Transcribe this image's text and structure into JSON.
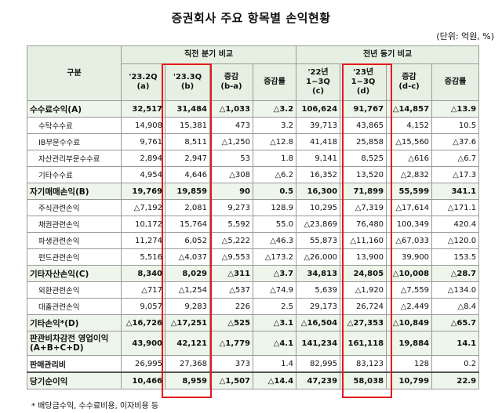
{
  "title": "증권회사 주요 항목별 손익현황",
  "unit": "(단위: 억원, %)",
  "headers": {
    "item": "구분",
    "group1": "직전 분기 비교",
    "group2": "전년 동기 비교",
    "c1": "'23.2Q\n(a)",
    "c2": "'23.3Q\n(b)",
    "c3": "증감\n(b-a)",
    "c4": "증감률",
    "c5": "'22년\n1~3Q\n(c)",
    "c6": "'23년\n1~3Q\n(d)",
    "c7": "증감\n(d-c)",
    "c8": "증감률"
  },
  "rows": [
    {
      "label": "수수료수익(A)",
      "level": "main",
      "values": [
        "32,517",
        "31,484",
        "△1,033",
        "△3.2",
        "106,624",
        "91,767",
        "△14,857",
        "△13.9"
      ]
    },
    {
      "label": "수탁수수료",
      "level": "sub",
      "values": [
        "14,908",
        "15,381",
        "473",
        "3.2",
        "39,713",
        "43,865",
        "4,152",
        "10.5"
      ]
    },
    {
      "label": "IB부문수수료",
      "level": "sub",
      "values": [
        "9,761",
        "8,511",
        "△1,250",
        "△12.8",
        "41,418",
        "25,858",
        "△15,560",
        "△37.6"
      ]
    },
    {
      "label": "자산관리부문수수료",
      "level": "sub",
      "values": [
        "2,894",
        "2,947",
        "53",
        "1.8",
        "9,141",
        "8,525",
        "△616",
        "△6.7"
      ]
    },
    {
      "label": "기타수수료",
      "level": "sub",
      "values": [
        "4,954",
        "4,646",
        "△308",
        "△6.2",
        "16,352",
        "13,520",
        "△2,832",
        "△17.3"
      ]
    },
    {
      "label": "자기매매손익(B)",
      "level": "main",
      "values": [
        "19,769",
        "19,859",
        "90",
        "0.5",
        "16,300",
        "71,899",
        "55,599",
        "341.1"
      ]
    },
    {
      "label": "주식관련손익",
      "level": "sub",
      "values": [
        "△7,192",
        "2,081",
        "9,273",
        "128.9",
        "10,295",
        "△7,319",
        "△17,614",
        "△171.1"
      ]
    },
    {
      "label": "채권관련손익",
      "level": "sub",
      "values": [
        "10,172",
        "15,764",
        "5,592",
        "55.0",
        "△23,869",
        "76,480",
        "100,349",
        "420.4"
      ]
    },
    {
      "label": "파생관련손익",
      "level": "sub",
      "values": [
        "11,274",
        "6,052",
        "△5,222",
        "△46.3",
        "55,873",
        "△11,160",
        "△67,033",
        "△120.0"
      ]
    },
    {
      "label": "펀드관련손익",
      "level": "sub",
      "values": [
        "5,516",
        "△4,037",
        "△9,553",
        "△173.2",
        "△26,000",
        "13,900",
        "39,900",
        "153.5"
      ]
    },
    {
      "label": "기타자산손익(C)",
      "level": "main",
      "values": [
        "8,340",
        "8,029",
        "△311",
        "△3.7",
        "34,813",
        "24,805",
        "△10,008",
        "△28.7"
      ]
    },
    {
      "label": "외환관련손익",
      "level": "sub",
      "values": [
        "△717",
        "△1,254",
        "△537",
        "△74.9",
        "5,639",
        "△1,920",
        "△7,559",
        "△134.0"
      ]
    },
    {
      "label": "대출관련손익",
      "level": "sub",
      "values": [
        "9,057",
        "9,283",
        "226",
        "2.5",
        "29,173",
        "26,724",
        "△2,449",
        "△8.4"
      ]
    },
    {
      "label": "기타손익*(D)",
      "level": "main",
      "values": [
        "△16,726",
        "△17,251",
        "△525",
        "△3.1",
        "△16,504",
        "△27,353",
        "△10,849",
        "△65.7"
      ]
    },
    {
      "label": "판관비차감전 영업이익(A+B+C+D)",
      "level": "main",
      "tall": true,
      "values": [
        "43,900",
        "42,121",
        "△1,779",
        "△4.1",
        "141,234",
        "161,118",
        "19,884",
        "14.1"
      ]
    },
    {
      "label": "판매관리비",
      "level": "main2",
      "values": [
        "26,995",
        "27,368",
        "373",
        "1.4",
        "82,995",
        "83,123",
        "128",
        "0.2"
      ]
    },
    {
      "label": "당기순이익",
      "level": "main",
      "total": true,
      "values": [
        "10,466",
        "8,959",
        "△1,507",
        "△14.4",
        "47,239",
        "58,038",
        "10,799",
        "22.9"
      ]
    }
  ],
  "footnote": "* 배당금수익, 수수료비용, 이자비용 등"
}
